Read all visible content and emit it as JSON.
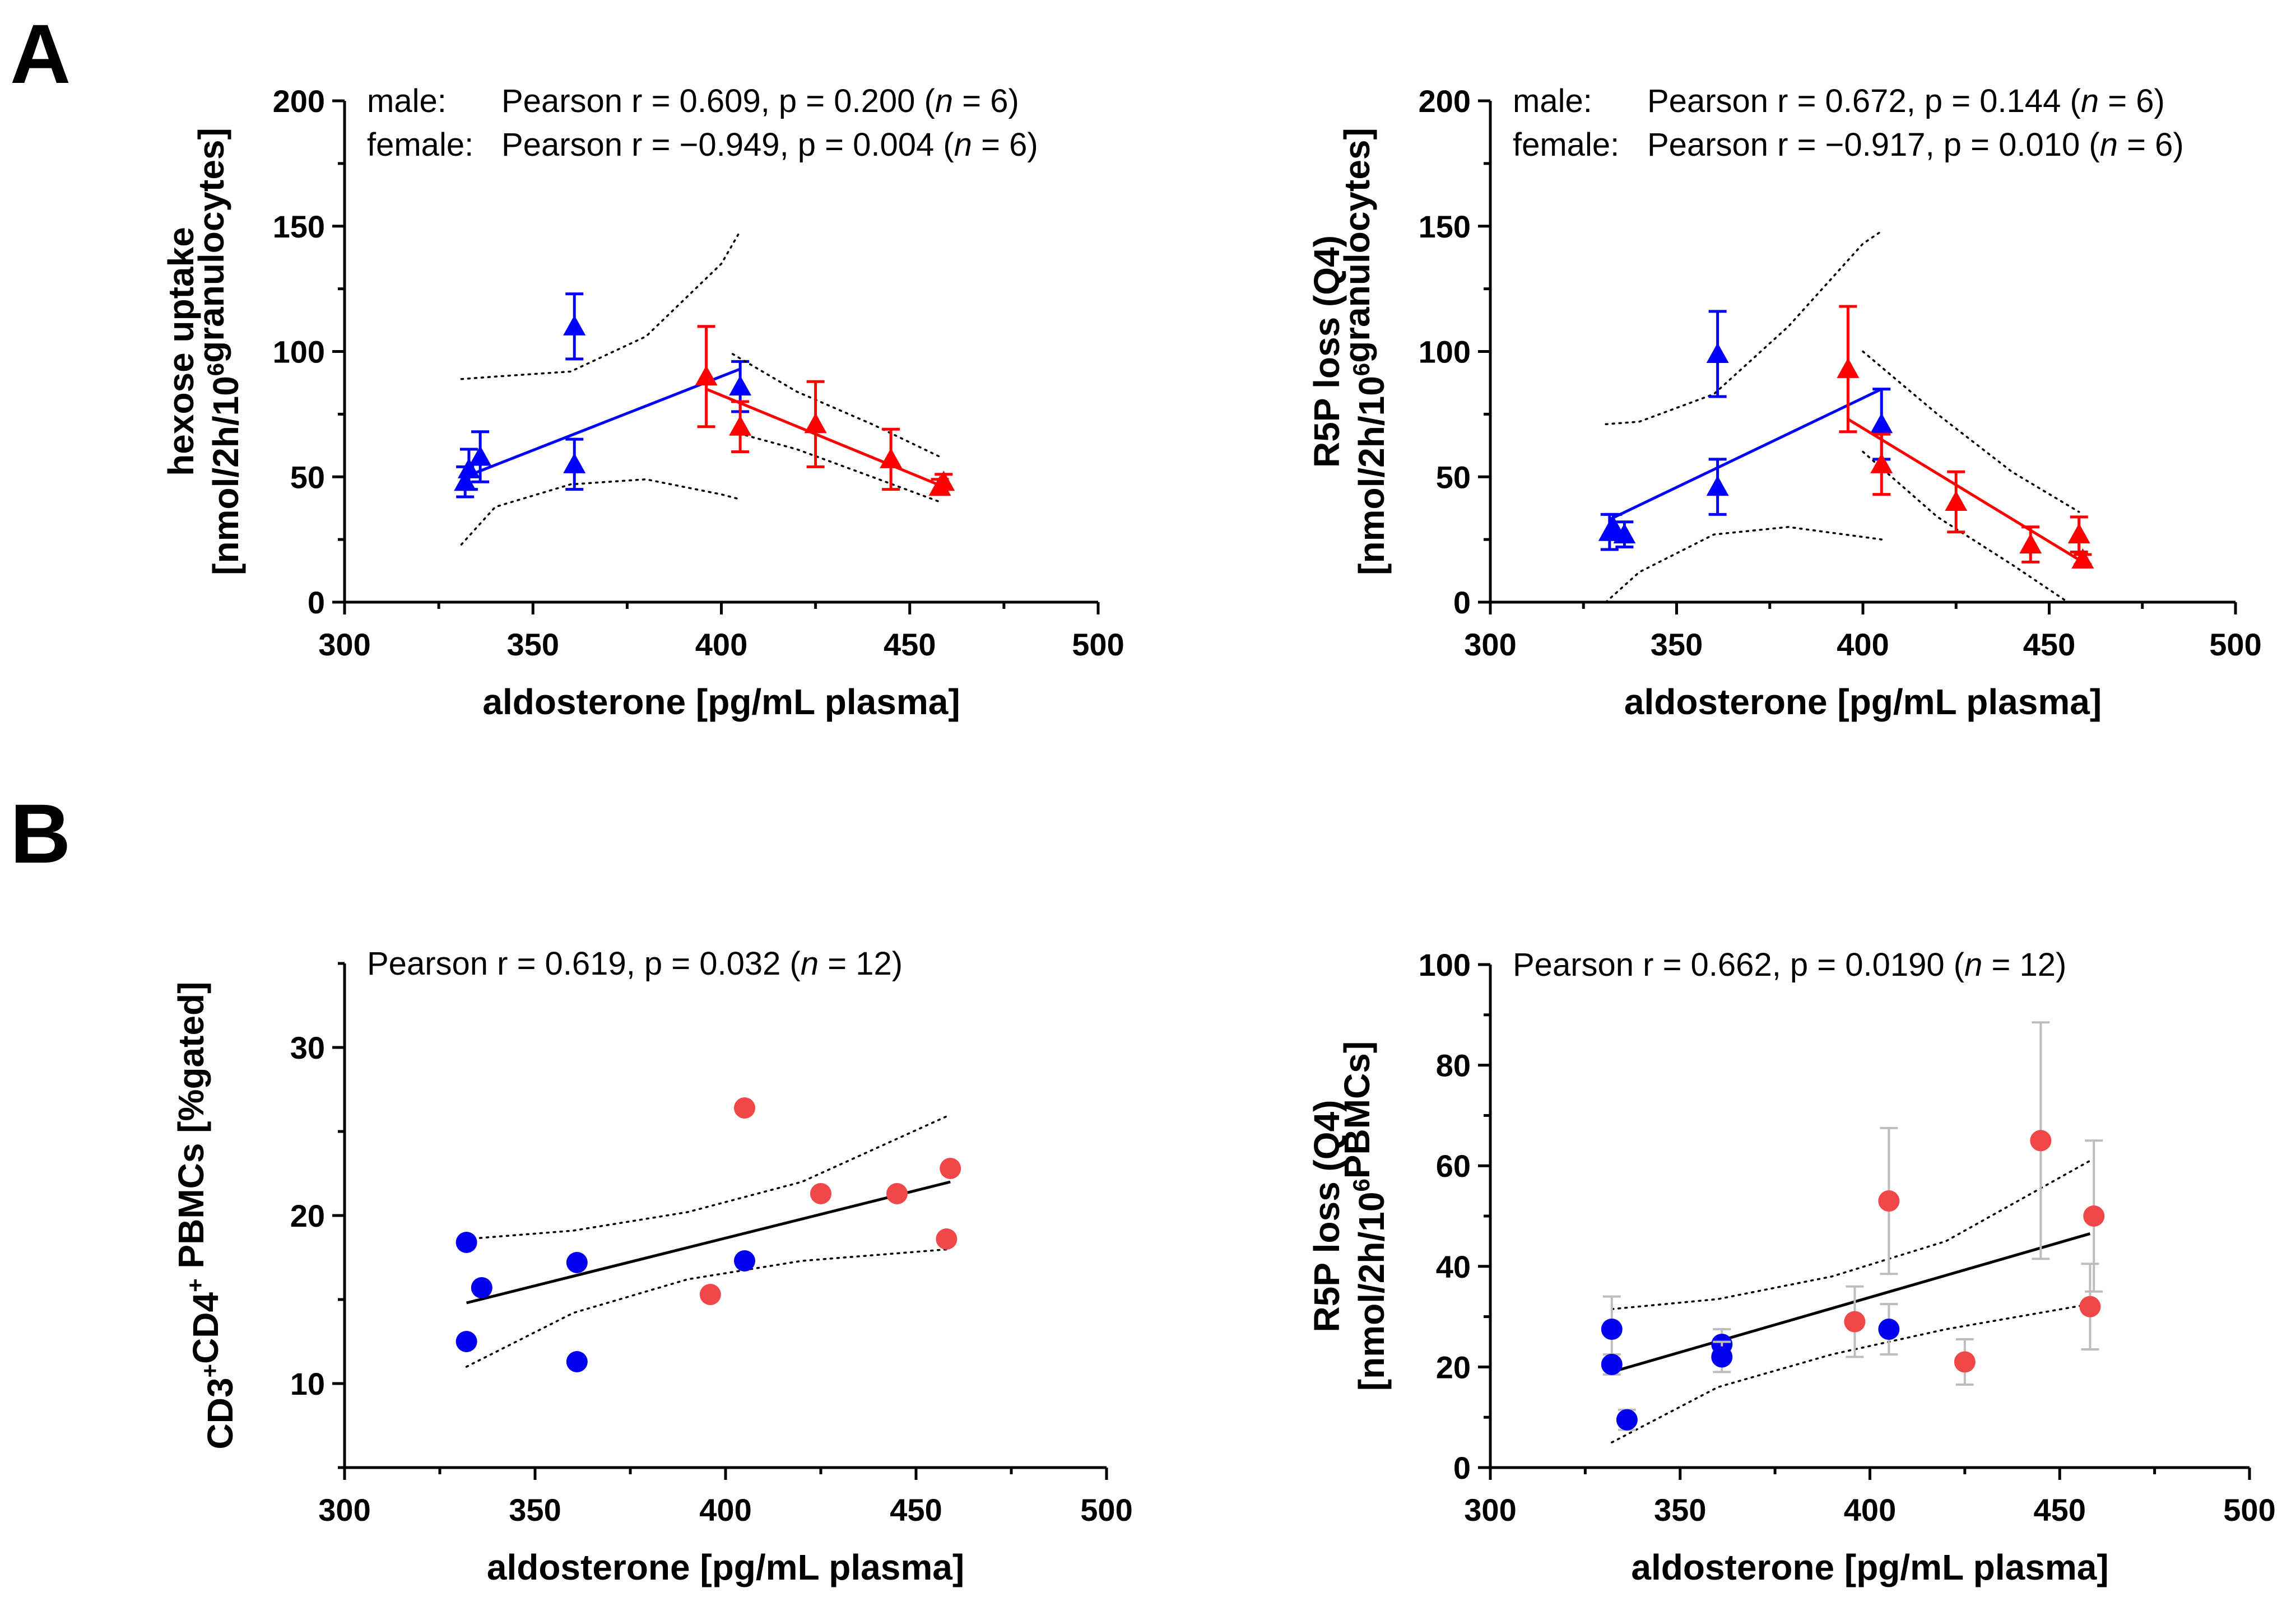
{
  "figure": {
    "panel_labels": [
      "A",
      "B"
    ]
  },
  "colors": {
    "male": "#0000ff",
    "female": "#ff0000",
    "male_dot": "#0000ee",
    "female_dot": "#f04848",
    "errorbar_gray": "#bdbdbd",
    "fit_black": "#000000"
  },
  "chart_data": [
    {
      "id": "A1",
      "type": "scatter",
      "marker": "triangle",
      "xlabel": "aldosterone [pg/mL plasma]",
      "ylabel_lines": [
        "hexose uptake",
        "[nmol/2h/10^6 granulocytes]"
      ],
      "xlim": [
        300,
        500
      ],
      "ylim": [
        0,
        200
      ],
      "xticks": [
        "300",
        "350",
        "400",
        "450",
        "500"
      ],
      "yticks": [
        "0",
        "50",
        "100",
        "150",
        "200"
      ],
      "stats": [
        {
          "group": "male:",
          "text": "Pearson r =   0.609,  p = 0.200 (",
          "n": "n",
          "n_value": " = 6)"
        },
        {
          "group": "female:",
          "text": "Pearson r = −0.949,  p = 0.004 (",
          "n": "n",
          "n_value": " = 6)"
        }
      ],
      "series": [
        {
          "name": "male",
          "points": [
            {
              "x": 332,
              "y": 48,
              "err": 6
            },
            {
              "x": 333,
              "y": 53,
              "err": 8
            },
            {
              "x": 336,
              "y": 58,
              "err": 10
            },
            {
              "x": 361,
              "y": 110,
              "err": 13
            },
            {
              "x": 361,
              "y": 55,
              "err": 10
            },
            {
              "x": 405,
              "y": 86,
              "err": 10
            }
          ],
          "fit": {
            "x": [
              332,
              405
            ],
            "y": [
              50,
              93
            ]
          },
          "ci_upper": [
            [
              331,
              89
            ],
            [
              340,
              90
            ],
            [
              360,
              92
            ],
            [
              380,
              106
            ],
            [
              400,
              135
            ],
            [
              405,
              148
            ]
          ],
          "ci_lower": [
            [
              331,
              23
            ],
            [
              340,
              38
            ],
            [
              360,
              47
            ],
            [
              380,
              49
            ],
            [
              400,
              43
            ],
            [
              405,
              41
            ]
          ]
        },
        {
          "name": "female",
          "points": [
            {
              "x": 396,
              "y": 90,
              "err": 20
            },
            {
              "x": 405,
              "y": 70,
              "err": 10
            },
            {
              "x": 425,
              "y": 71,
              "err": 17
            },
            {
              "x": 445,
              "y": 57,
              "err": 12
            },
            {
              "x": 458,
              "y": 46,
              "err": 3
            },
            {
              "x": 459,
              "y": 48,
              "err": 3
            }
          ],
          "fit": {
            "x": [
              396,
              459
            ],
            "y": [
              85,
              46
            ]
          },
          "ci_upper": [
            [
              403,
              99
            ],
            [
              420,
              84
            ],
            [
              440,
              71
            ],
            [
              458,
              58
            ]
          ],
          "ci_lower": [
            [
              403,
              68
            ],
            [
              420,
              61
            ],
            [
              440,
              50
            ],
            [
              458,
              40
            ]
          ]
        }
      ]
    },
    {
      "id": "A2",
      "type": "scatter",
      "marker": "triangle",
      "xlabel": "aldosterone [pg/mL plasma]",
      "ylabel_lines": [
        "R5P loss (Q4)",
        "[nmol/2h/10^6 granulocytes]"
      ],
      "xlim": [
        300,
        500
      ],
      "ylim": [
        0,
        200
      ],
      "xticks": [
        "300",
        "350",
        "400",
        "450",
        "500"
      ],
      "yticks": [
        "0",
        "50",
        "100",
        "150",
        "200"
      ],
      "stats": [
        {
          "group": "male:",
          "text": "Pearson r =   0.672,  p = 0.144 (",
          "n": "n",
          "n_value": " = 6)"
        },
        {
          "group": "female:",
          "text": "Pearson r = −0.917,  p = 0.010 (",
          "n": "n",
          "n_value": " = 6)"
        }
      ],
      "series": [
        {
          "name": "male",
          "points": [
            {
              "x": 332,
              "y": 28,
              "err": 7
            },
            {
              "x": 333,
              "y": 30,
              "err": 5
            },
            {
              "x": 336,
              "y": 27,
              "err": 5
            },
            {
              "x": 361,
              "y": 99,
              "err": 17
            },
            {
              "x": 361,
              "y": 46,
              "err": 11
            },
            {
              "x": 405,
              "y": 71,
              "err": 14
            }
          ],
          "fit": {
            "x": [
              332,
              405
            ],
            "y": [
              33,
              85
            ]
          },
          "ci_upper": [
            [
              331,
              71
            ],
            [
              340,
              72
            ],
            [
              360,
              83
            ],
            [
              380,
              110
            ],
            [
              400,
              143
            ],
            [
              405,
              148
            ]
          ],
          "ci_lower": [
            [
              331,
              0
            ],
            [
              340,
              12
            ],
            [
              360,
              27
            ],
            [
              380,
              30
            ],
            [
              400,
              26
            ],
            [
              405,
              25
            ]
          ]
        },
        {
          "name": "female",
          "points": [
            {
              "x": 396,
              "y": 93,
              "err": 25
            },
            {
              "x": 405,
              "y": 55,
              "err": 12
            },
            {
              "x": 425,
              "y": 40,
              "err": 12
            },
            {
              "x": 445,
              "y": 23,
              "err": 7
            },
            {
              "x": 458,
              "y": 27,
              "err": 7
            },
            {
              "x": 459,
              "y": 17,
              "err": 2
            }
          ],
          "fit": {
            "x": [
              396,
              459
            ],
            "y": [
              73,
              16
            ]
          },
          "ci_upper": [
            [
              400,
              100
            ],
            [
              420,
              75
            ],
            [
              440,
              52
            ],
            [
              458,
              36
            ]
          ],
          "ci_lower": [
            [
              400,
              60
            ],
            [
              420,
              34
            ],
            [
              440,
              15
            ],
            [
              455,
              0
            ]
          ]
        }
      ]
    },
    {
      "id": "B1",
      "type": "scatter",
      "marker": "circle",
      "xlabel": "aldosterone [pg/mL plasma]",
      "ylabel_lines": [
        "CD3+CD4+ PBMCs [%gated]"
      ],
      "xlim": [
        300,
        500
      ],
      "ylim": [
        5,
        35
      ],
      "xticks": [
        "300",
        "350",
        "400",
        "450",
        "500"
      ],
      "yticks": [
        "10",
        "20",
        "30"
      ],
      "stats": [
        {
          "group": "",
          "text": "Pearson r = 0.619, p = 0.032 (",
          "n": "n",
          "n_value": " = 12)"
        }
      ],
      "series": [
        {
          "name": "male",
          "points": [
            {
              "x": 332,
              "y": 18.4
            },
            {
              "x": 332,
              "y": 12.5
            },
            {
              "x": 336,
              "y": 15.7
            },
            {
              "x": 361,
              "y": 17.2
            },
            {
              "x": 361,
              "y": 11.3
            },
            {
              "x": 405,
              "y": 17.3
            }
          ]
        },
        {
          "name": "female",
          "points": [
            {
              "x": 396,
              "y": 15.3
            },
            {
              "x": 405,
              "y": 26.4
            },
            {
              "x": 425,
              "y": 21.3
            },
            {
              "x": 445,
              "y": 21.3
            },
            {
              "x": 458,
              "y": 18.6
            },
            {
              "x": 459,
              "y": 22.8
            }
          ]
        }
      ],
      "fit": {
        "x": [
          332,
          459
        ],
        "y": [
          14.8,
          22.0
        ]
      },
      "ci_upper": [
        [
          332,
          18.6
        ],
        [
          360,
          19.1
        ],
        [
          390,
          20.2
        ],
        [
          420,
          22.0
        ],
        [
          459,
          26.0
        ]
      ],
      "ci_lower": [
        [
          332,
          11.0
        ],
        [
          360,
          14.2
        ],
        [
          390,
          16.2
        ],
        [
          420,
          17.3
        ],
        [
          459,
          18.0
        ]
      ]
    },
    {
      "id": "B2",
      "type": "scatter",
      "marker": "circle",
      "xlabel": "aldosterone [pg/mL plasma]",
      "ylabel_lines": [
        "R5P loss (Q4)",
        "[nmol/2h/10^6 PBMCs]"
      ],
      "xlim": [
        300,
        500
      ],
      "ylim": [
        0,
        100
      ],
      "xticks": [
        "300",
        "350",
        "400",
        "450",
        "500"
      ],
      "yticks": [
        "0",
        "20",
        "40",
        "60",
        "80",
        "100"
      ],
      "stats": [
        {
          "group": "",
          "text": "Pearson r = 0.662, p = 0.0190 (",
          "n": "n",
          "n_value": " = 12)"
        }
      ],
      "series": [
        {
          "name": "male",
          "points": [
            {
              "x": 332,
              "y": 27.5,
              "err": 6.5
            },
            {
              "x": 332,
              "y": 20.5,
              "err": 2
            },
            {
              "x": 336,
              "y": 9.5,
              "err": 2
            },
            {
              "x": 361,
              "y": 24.5,
              "err": 3
            },
            {
              "x": 361,
              "y": 22,
              "err": 3
            },
            {
              "x": 405,
              "y": 27.5,
              "err": 5
            }
          ]
        },
        {
          "name": "female",
          "points": [
            {
              "x": 396,
              "y": 29,
              "err": 7
            },
            {
              "x": 405,
              "y": 53,
              "err": 14.5
            },
            {
              "x": 425,
              "y": 21,
              "err": 4.5
            },
            {
              "x": 445,
              "y": 65,
              "err": 23.5
            },
            {
              "x": 458,
              "y": 32,
              "err": 8.5
            },
            {
              "x": 459,
              "y": 50,
              "err": 15
            }
          ]
        }
      ],
      "fit": {
        "x": [
          332,
          458
        ],
        "y": [
          19,
          46.5
        ]
      },
      "ci_upper": [
        [
          332,
          31.5
        ],
        [
          360,
          33.5
        ],
        [
          390,
          38.0
        ],
        [
          420,
          45.0
        ],
        [
          458,
          61.0
        ]
      ],
      "ci_lower": [
        [
          332,
          5.0
        ],
        [
          360,
          16.0
        ],
        [
          390,
          22.5
        ],
        [
          420,
          27.5
        ],
        [
          458,
          32.5
        ]
      ]
    }
  ]
}
